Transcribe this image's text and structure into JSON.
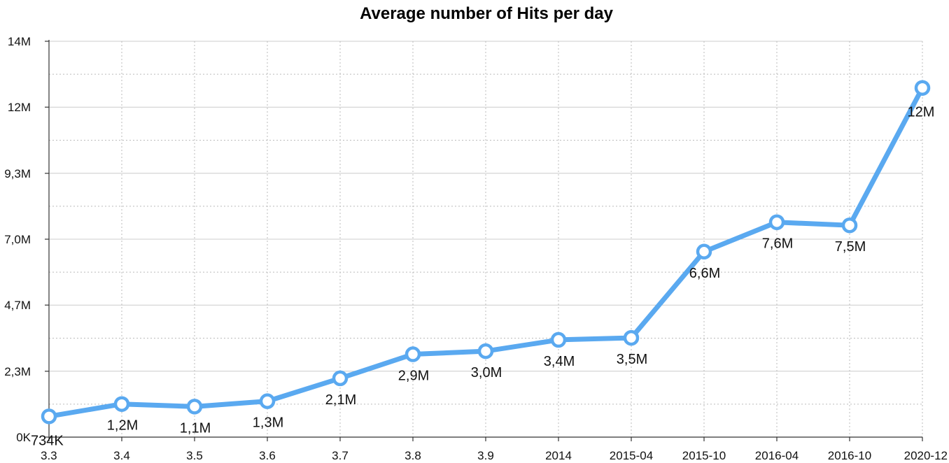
{
  "chart_data": {
    "type": "line",
    "title": "Average number of Hits per day",
    "xlabel": "",
    "ylabel": "",
    "categories": [
      "3.3",
      "3.4",
      "3.5",
      "3.6",
      "3.7",
      "3.8",
      "3.9",
      "2014",
      "2015-04",
      "2015-10",
      "2016-04",
      "2016-10",
      "2020-12"
    ],
    "series": [
      {
        "values": [
          734000,
          1170000,
          1080000,
          1270000,
          2080000,
          2930000,
          3040000,
          3440000,
          3510000,
          6560000,
          7600000,
          7490000,
          12350000
        ],
        "labels": [
          "734K",
          "1,2M",
          "1,1M",
          "1,3M",
          "2,1M",
          "2,9M",
          "3,0M",
          "3,4M",
          "3,5M",
          "6,6M",
          "7,6M",
          "7,5M",
          "12M"
        ]
      }
    ],
    "y_ticks": [
      {
        "value": 0,
        "label": "0K"
      },
      {
        "value": 2330000,
        "label": "2,3M"
      },
      {
        "value": 4670000,
        "label": "4,7M"
      },
      {
        "value": 7000000,
        "label": "7,0M"
      },
      {
        "value": 9330000,
        "label": "9,3M"
      },
      {
        "value": 11670000,
        "label": "12M"
      },
      {
        "value": 14000000,
        "label": "14M"
      }
    ],
    "ylim": [
      0,
      14000000
    ],
    "grid": true,
    "line_color": "#5aa9f0",
    "grid_color": "#cccccc",
    "axis_color": "#333333"
  }
}
